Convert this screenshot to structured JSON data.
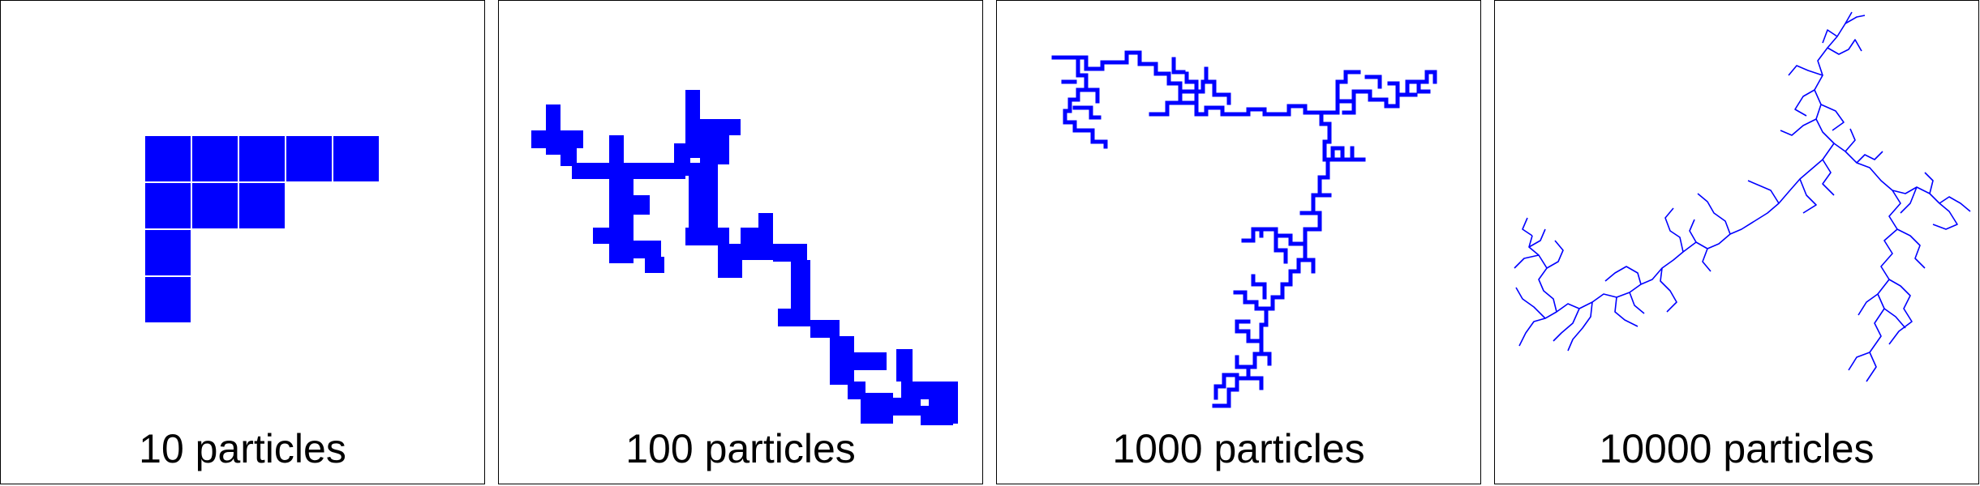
{
  "color": "#0000ff",
  "panels": [
    {
      "caption": "10 particles"
    },
    {
      "caption": "100 particles"
    },
    {
      "caption": "1000 particles"
    },
    {
      "caption": "10000 particles"
    }
  ]
}
